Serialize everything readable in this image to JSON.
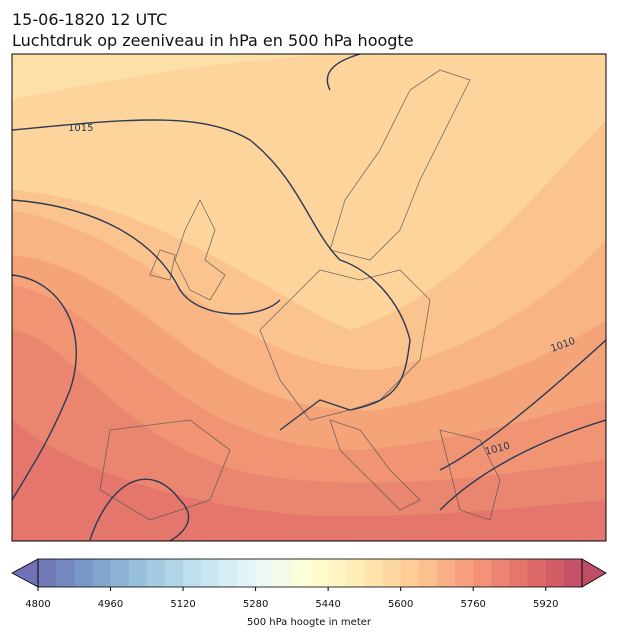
{
  "title": "15-06-1820 12 UTC",
  "subtitle": "Luchtdruk op zeeniveau in hPa en 500 hPa hoogte",
  "contour_labels": [
    "1015",
    "1010",
    "1010"
  ],
  "colorbar": {
    "range": [
      4800,
      6000
    ],
    "step": 40,
    "colormap": "RdYlBu_r",
    "extend": "both",
    "ticks": [
      4800,
      4960,
      5120,
      5280,
      5440,
      5600,
      5760,
      5920
    ],
    "label": "500 hPa hoogte in meter"
  }
}
